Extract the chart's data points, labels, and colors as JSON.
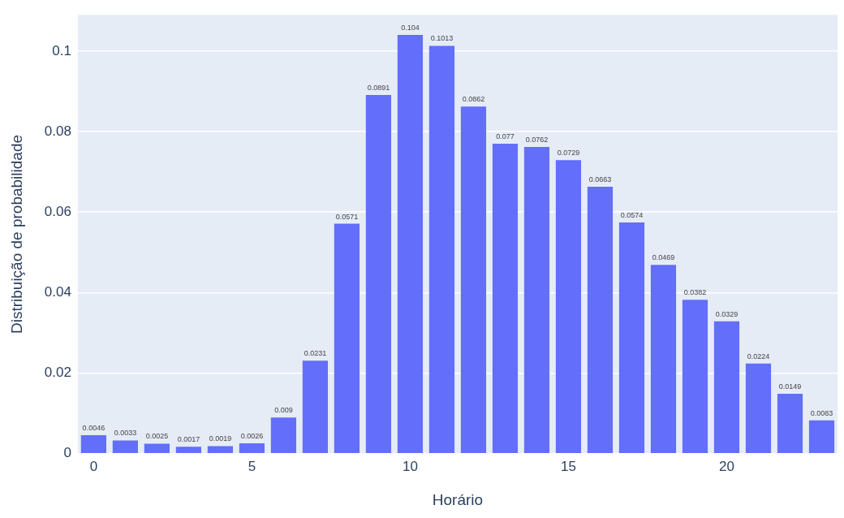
{
  "chart_data": {
    "type": "bar",
    "xlabel": "Horário",
    "ylabel": "Distribuição de probabilidade",
    "x": [
      0,
      1,
      2,
      3,
      4,
      5,
      6,
      7,
      8,
      9,
      10,
      11,
      12,
      13,
      14,
      15,
      16,
      17,
      18,
      19,
      20,
      21,
      22,
      23
    ],
    "values": [
      0.0046,
      0.0033,
      0.0025,
      0.0017,
      0.0019,
      0.0026,
      0.009,
      0.0231,
      0.0571,
      0.0891,
      0.104,
      0.1013,
      0.0862,
      0.077,
      0.0762,
      0.0729,
      0.0663,
      0.0574,
      0.0469,
      0.0382,
      0.0329,
      0.0224,
      0.0149,
      0.0083
    ],
    "color": "#636efa",
    "data_labels": true,
    "grid": "y",
    "xlim": [
      -0.5,
      23.5
    ],
    "xticks": [
      0,
      5,
      10,
      15,
      20
    ],
    "ylim": [
      0,
      0.109
    ],
    "yticks": [
      0,
      0.02,
      0.04,
      0.06,
      0.08,
      0.1
    ]
  }
}
